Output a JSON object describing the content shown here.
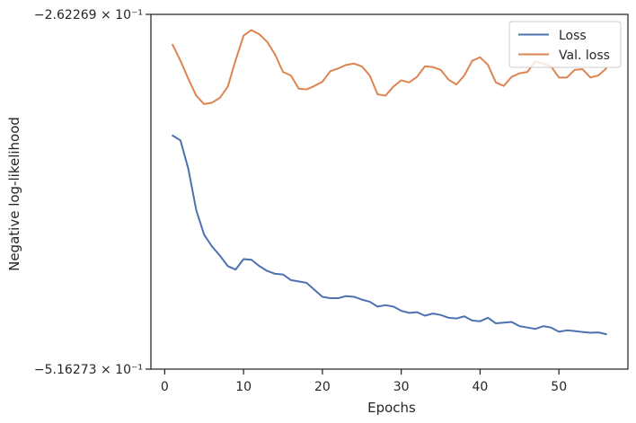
{
  "chart_data": {
    "type": "line",
    "xlabel": "Epochs",
    "ylabel": "Negative log-likelihood",
    "xlim": [
      -1.75,
      58.75
    ],
    "ylim": [
      -0.516273,
      -0.262269
    ],
    "xticks": [
      0,
      10,
      20,
      30,
      40,
      50
    ],
    "yticks": [
      {
        "value": -0.262269,
        "label": "−2.62269 × 10⁻¹"
      },
      {
        "value": -0.516273,
        "label": "−5.16273 × 10⁻¹"
      }
    ],
    "grid": false,
    "legend_position": "top-right",
    "series": [
      {
        "name": "Loss",
        "color": "#4c72b0",
        "x": [
          1,
          2,
          3,
          4,
          5,
          6,
          7,
          8,
          9,
          10,
          11,
          12,
          13,
          14,
          15,
          16,
          17,
          18,
          19,
          20,
          21,
          22,
          23,
          24,
          25,
          26,
          27,
          28,
          29,
          30,
          31,
          32,
          33,
          34,
          35,
          36,
          37,
          38,
          39,
          40,
          41,
          42,
          43,
          44,
          45,
          46,
          47,
          48,
          49,
          50,
          51,
          52,
          53,
          54,
          55,
          56
        ],
        "values": [
          -0.349,
          -0.3525,
          -0.373,
          -0.4025,
          -0.42,
          -0.4285,
          -0.435,
          -0.4425,
          -0.445,
          -0.4375,
          -0.438,
          -0.4425,
          -0.446,
          -0.448,
          -0.4485,
          -0.4525,
          -0.4535,
          -0.4545,
          -0.4595,
          -0.4645,
          -0.4655,
          -0.4655,
          -0.464,
          -0.4645,
          -0.4665,
          -0.468,
          -0.4715,
          -0.4705,
          -0.4715,
          -0.4745,
          -0.476,
          -0.4755,
          -0.478,
          -0.4765,
          -0.4775,
          -0.4795,
          -0.48,
          -0.4785,
          -0.4815,
          -0.482,
          -0.4795,
          -0.4835,
          -0.483,
          -0.4825,
          -0.4855,
          -0.4865,
          -0.4875,
          -0.4855,
          -0.4865,
          -0.4895,
          -0.4885,
          -0.489,
          -0.4897,
          -0.4902,
          -0.49,
          -0.4913
        ]
      },
      {
        "name": "Val. loss",
        "color": "#dd8452",
        "x": [
          1,
          2,
          3,
          4,
          5,
          6,
          7,
          8,
          9,
          10,
          11,
          12,
          13,
          14,
          15,
          16,
          17,
          18,
          19,
          20,
          21,
          22,
          23,
          24,
          25,
          26,
          27,
          28,
          29,
          30,
          31,
          32,
          33,
          34,
          35,
          36,
          37,
          38,
          39,
          40,
          41,
          42,
          43,
          44,
          45,
          46,
          47,
          48,
          49,
          50,
          51,
          52,
          53,
          54,
          55,
          56
        ],
        "values": [
          -0.284,
          -0.2955,
          -0.3085,
          -0.3205,
          -0.3265,
          -0.3255,
          -0.322,
          -0.314,
          -0.295,
          -0.2775,
          -0.2735,
          -0.2765,
          -0.282,
          -0.291,
          -0.3035,
          -0.306,
          -0.3155,
          -0.316,
          -0.3135,
          -0.3105,
          -0.303,
          -0.301,
          -0.2985,
          -0.2975,
          -0.2995,
          -0.306,
          -0.3195,
          -0.3205,
          -0.314,
          -0.3095,
          -0.311,
          -0.307,
          -0.2995,
          -0.3,
          -0.302,
          -0.309,
          -0.3125,
          -0.306,
          -0.2955,
          -0.293,
          -0.2985,
          -0.311,
          -0.3135,
          -0.307,
          -0.3045,
          -0.3035,
          -0.296,
          -0.2975,
          -0.2995,
          -0.3075,
          -0.3075,
          -0.302,
          -0.3015,
          -0.3075,
          -0.306,
          -0.301
        ]
      }
    ]
  }
}
